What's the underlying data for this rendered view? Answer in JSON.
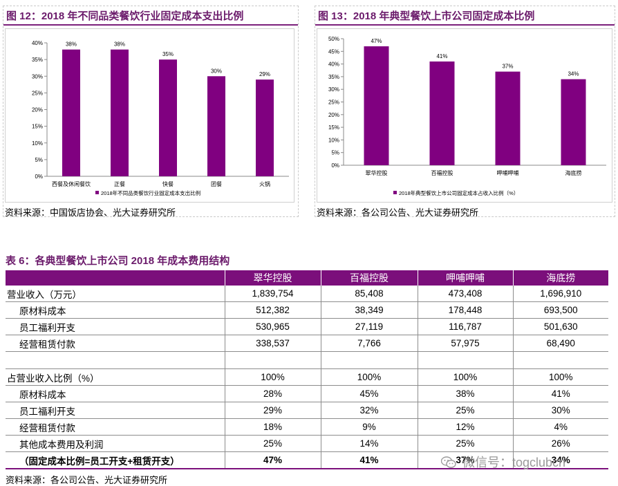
{
  "figure12": {
    "title": "图 12：2018 年不同品类餐饮行业固定成本支出比例",
    "source": "资料来源：中国饭店协会、光大证券研究所"
  },
  "figure13": {
    "title": "图 13：2018 年典型餐饮上市公司固定成本比例",
    "source": "资料来源：各公司公告、光大证券研究所"
  },
  "chart_data": [
    {
      "type": "bar",
      "categories": [
        "西餐及休闲餐饮",
        "正餐",
        "快餐",
        "团餐",
        "火锅"
      ],
      "series": [
        {
          "name": "2018年不同品类餐饮行业固定成本支出比例",
          "values": [
            38,
            38,
            35,
            30,
            29
          ]
        }
      ],
      "data_labels": [
        "38%",
        "38%",
        "35%",
        "30%",
        "29%"
      ],
      "yticks": [
        "0%",
        "5%",
        "10%",
        "15%",
        "20%",
        "25%",
        "30%",
        "35%",
        "40%"
      ],
      "ylim": [
        0,
        40
      ],
      "legend_position": "bottom",
      "bar_color": "#800080"
    },
    {
      "type": "bar",
      "categories": [
        "翠华控股",
        "百福控股",
        "呷哺呷哺",
        "海底捞"
      ],
      "series": [
        {
          "name": "2018年典型餐饮上市公司固定成本占收入比例（%）",
          "values": [
            47,
            41,
            37,
            34
          ]
        }
      ],
      "data_labels": [
        "47%",
        "41%",
        "37%",
        "34%"
      ],
      "yticks": [
        "0%",
        "5%",
        "10%",
        "15%",
        "20%",
        "25%",
        "30%",
        "35%",
        "40%",
        "45%",
        "50%"
      ],
      "ylim": [
        0,
        50
      ],
      "legend_position": "bottom",
      "bar_color": "#800080"
    }
  ],
  "table6": {
    "title": "表 6：各典型餐饮上市公司 2018 年成本费用结构",
    "headers": [
      "",
      "翠华控股",
      "百福控股",
      "呷哺呷哺",
      "海底捞"
    ],
    "rows": [
      {
        "cells": [
          "营业收入（万元）",
          "1,839,754",
          "85,408",
          "473,408",
          "1,696,910"
        ]
      },
      {
        "cells": [
          "原材料成本",
          "512,382",
          "38,349",
          "178,448",
          "693,500"
        ]
      },
      {
        "cells": [
          "员工福利开支",
          "530,965",
          "27,119",
          "116,787",
          "501,630"
        ]
      },
      {
        "cells": [
          "经营租赁付款",
          "338,537",
          "7,766",
          "57,975",
          "68,490"
        ]
      },
      {
        "cells": [
          "",
          "",
          "",
          "",
          ""
        ]
      },
      {
        "cells": [
          "占营业收入比例（%）",
          "100%",
          "100%",
          "100%",
          "100%"
        ]
      },
      {
        "cells": [
          "原材料成本",
          "28%",
          "45%",
          "38%",
          "41%"
        ]
      },
      {
        "cells": [
          "员工福利开支",
          "29%",
          "32%",
          "25%",
          "30%"
        ]
      },
      {
        "cells": [
          "经营租赁付款",
          "18%",
          "9%",
          "12%",
          "4%"
        ]
      },
      {
        "cells": [
          "其他成本费用及利润",
          "25%",
          "14%",
          "25%",
          "26%"
        ]
      },
      {
        "cells": [
          "（固定成本比例=员工开支+租赁开支）",
          "47%",
          "41%",
          "37%",
          "34%"
        ]
      }
    ],
    "source": "资料来源：各公司公告、光大证券研究所"
  },
  "watermark": {
    "text": "微信号：togclubcn",
    "icon": "wechat-icon"
  }
}
